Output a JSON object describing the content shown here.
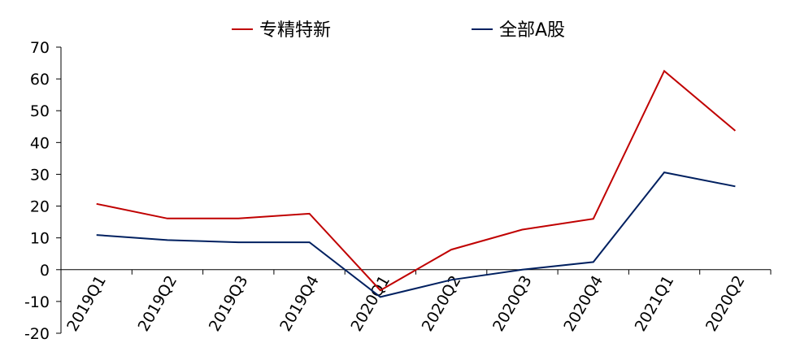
{
  "chart_data": {
    "type": "line",
    "title": "",
    "xlabel": "",
    "ylabel": "",
    "categories": [
      "2019Q1",
      "2019Q2",
      "2019Q3",
      "2019Q4",
      "2020Q1",
      "2020Q2",
      "2020Q3",
      "2020Q4",
      "2021Q1",
      "2020Q2"
    ],
    "ylim": [
      -20,
      70
    ],
    "yticks": [
      -20,
      -10,
      0,
      10,
      20,
      30,
      40,
      50,
      60,
      70
    ],
    "grid": false,
    "legend_position": "top-center",
    "series": [
      {
        "name": "专精特新",
        "color": "#C00000",
        "values": [
          20.7,
          16.1,
          16.1,
          17.6,
          -6.5,
          6.3,
          12.6,
          16.0,
          62.5,
          43.7
        ]
      },
      {
        "name": "全部A股",
        "color": "#002060",
        "values": [
          10.9,
          9.3,
          8.6,
          8.6,
          -8.6,
          -3.2,
          0.0,
          2.4,
          30.6,
          26.2
        ]
      }
    ]
  }
}
